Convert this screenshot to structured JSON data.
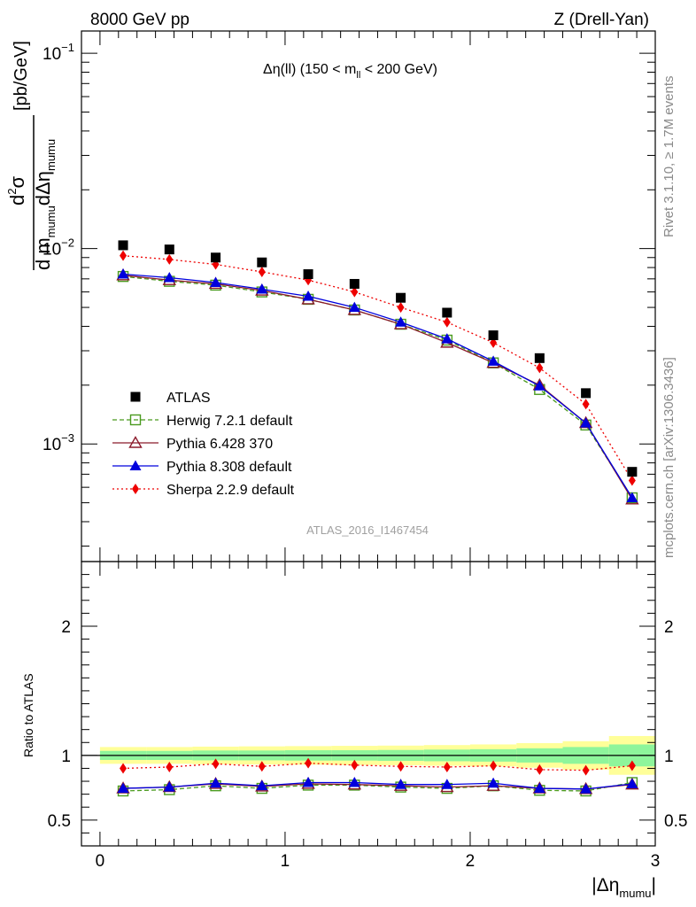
{
  "header": {
    "left": "8000 GeV pp",
    "right": "Z (Drell-Yan)"
  },
  "side_labels": {
    "rivet": "Rivet 3.1.10, ≥ 1.7M events",
    "mcplots": "mcplots.cern.ch [arXiv:1306.3436]"
  },
  "watermark": "ATLAS_2016_I1467454",
  "colors": {
    "atlas": "#000000",
    "herwig": "#4a9a1e",
    "pythia6": "#8b1a2b",
    "pythia8": "#0000dd",
    "sherpa": "#ee0000",
    "band_inner": "#8ef59b",
    "band_outer": "#ffff99"
  },
  "chart_data": [
    {
      "type": "scatter",
      "title": "Δη(ll) (150 < m_ll < 200 GeV)",
      "title_parts": {
        "main": "Δη(ll) (150 < m",
        "sub": "ll",
        "rest": " < 200 GeV)"
      },
      "ylabel": "d²σ / d m_mumu dΔη_mumu [pb/GeV]",
      "ylabel_parts": {
        "num": "d",
        "num_sup": "2",
        "num_sym": "σ",
        "den_a": "d m",
        "den_a_sub": "mumu",
        "den_b": "dΔη",
        "den_b_sub": "mumu",
        "unit": "[pb/GeV]"
      },
      "yscale": "log",
      "ylim": [
        0.00025,
        0.13
      ],
      "xlim": [
        -0.1,
        3.0
      ],
      "ytick_labels": [
        {
          "value": 0.1,
          "base": "10",
          "exp": "−1"
        },
        {
          "value": 0.01,
          "base": "10",
          "exp": "−2"
        },
        {
          "value": 0.001,
          "base": "10",
          "exp": "−3"
        }
      ],
      "x": [
        0.125,
        0.375,
        0.625,
        0.875,
        1.125,
        1.375,
        1.625,
        1.875,
        2.125,
        2.375,
        2.625,
        2.875
      ],
      "series": [
        {
          "key": "atlas",
          "name": "ATLAS",
          "marker": "square",
          "values": [
            0.0104,
            0.0099,
            0.009,
            0.0085,
            0.0074,
            0.0066,
            0.0056,
            0.0047,
            0.0036,
            0.00275,
            0.00182,
            0.00072
          ]
        },
        {
          "key": "herwig",
          "name": "Herwig 7.2.1 default",
          "marker": "open-square",
          "line": "dashed",
          "values": [
            0.0072,
            0.0068,
            0.0065,
            0.006,
            0.0055,
            0.00485,
            0.0041,
            0.0034,
            0.0026,
            0.0019,
            0.00125,
            0.00053
          ]
        },
        {
          "key": "pythia6",
          "name": "Pythia 6.428 370",
          "marker": "open-triangle",
          "line": "solid",
          "values": [
            0.0073,
            0.0069,
            0.0066,
            0.0061,
            0.0055,
            0.00485,
            0.0041,
            0.0033,
            0.0026,
            0.002,
            0.00128,
            0.00052
          ]
        },
        {
          "key": "pythia8",
          "name": "Pythia 8.308 default",
          "marker": "triangle",
          "line": "solid",
          "values": [
            0.0074,
            0.0071,
            0.0067,
            0.0062,
            0.0057,
            0.005,
            0.0042,
            0.00345,
            0.00265,
            0.00198,
            0.00128,
            0.00053
          ]
        },
        {
          "key": "sherpa",
          "name": "Sherpa 2.2.9 default",
          "marker": "diamond",
          "line": "dotted",
          "values": [
            0.0092,
            0.0088,
            0.0083,
            0.0076,
            0.0069,
            0.006,
            0.005,
            0.0042,
            0.0033,
            0.00245,
            0.0016,
            0.00065
          ]
        }
      ],
      "legend_placement": "bottom-left"
    },
    {
      "type": "scatter",
      "title": "",
      "ylabel": "Ratio to ATLAS",
      "xlabel": "|Δη_mumu|",
      "xlabel_parts": {
        "main": "|Δη",
        "sub": "mumu",
        "rest": "|"
      },
      "ylim": [
        0.3,
        2.5
      ],
      "xlim": [
        -0.1,
        3.0
      ],
      "yticks": [
        0.5,
        1,
        2
      ],
      "ytick_labels": [
        "0.5",
        "1",
        "2"
      ],
      "xticks": [
        0,
        1,
        2,
        3
      ],
      "xtick_labels": [
        "0",
        "1",
        "2",
        "3"
      ],
      "x": [
        0.125,
        0.375,
        0.625,
        0.875,
        1.125,
        1.375,
        1.625,
        1.875,
        2.125,
        2.375,
        2.625,
        2.875
      ],
      "band_inner_halfwidth": [
        0.035,
        0.035,
        0.038,
        0.038,
        0.04,
        0.04,
        0.042,
        0.045,
        0.048,
        0.055,
        0.065,
        0.085
      ],
      "band_outer_halfwidth": [
        0.065,
        0.065,
        0.068,
        0.07,
        0.072,
        0.074,
        0.076,
        0.08,
        0.085,
        0.095,
        0.11,
        0.15
      ],
      "series": [
        {
          "key": "herwig",
          "name": "Herwig 7.2.1 default",
          "marker": "open-square",
          "line": "dashed",
          "values": [
            0.725,
            0.735,
            0.765,
            0.745,
            0.77,
            0.77,
            0.755,
            0.745,
            0.765,
            0.73,
            0.725,
            0.79
          ]
        },
        {
          "key": "pythia6",
          "name": "Pythia 6.428 370",
          "marker": "open-triangle",
          "line": "solid",
          "values": [
            0.745,
            0.755,
            0.78,
            0.76,
            0.78,
            0.775,
            0.765,
            0.755,
            0.765,
            0.745,
            0.74,
            0.775
          ]
        },
        {
          "key": "pythia8",
          "name": "Pythia 8.308 default",
          "marker": "triangle",
          "line": "solid",
          "values": [
            0.745,
            0.755,
            0.785,
            0.765,
            0.79,
            0.79,
            0.775,
            0.775,
            0.785,
            0.745,
            0.74,
            0.78
          ]
        },
        {
          "key": "sherpa",
          "name": "Sherpa 2.2.9 default",
          "marker": "diamond",
          "line": "dotted",
          "values": [
            0.9,
            0.91,
            0.935,
            0.915,
            0.94,
            0.925,
            0.915,
            0.91,
            0.92,
            0.89,
            0.885,
            0.92
          ]
        }
      ]
    }
  ]
}
